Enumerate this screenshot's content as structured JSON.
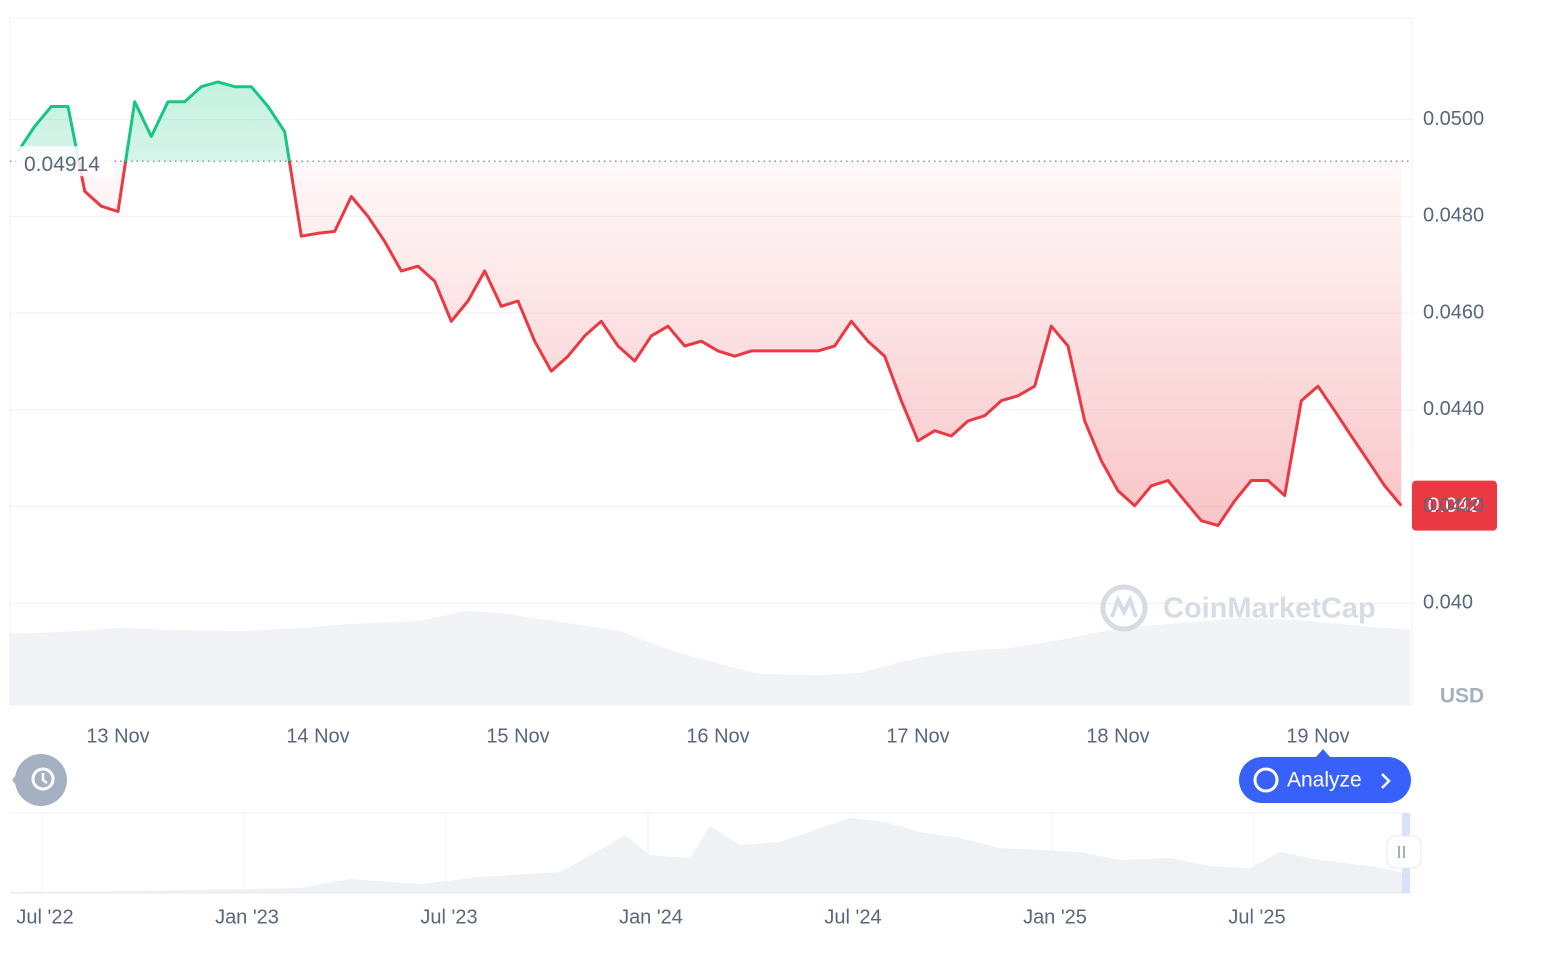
{
  "chart_data": {
    "type": "line",
    "categories": [
      null,
      null,
      null,
      null,
      null,
      null,
      "13 Nov",
      null,
      null,
      null,
      null,
      null,
      null,
      null,
      null,
      null,
      null,
      null,
      "14 Nov",
      null,
      null,
      null,
      null,
      null,
      null,
      null,
      null,
      null,
      null,
      null,
      "15 Nov",
      null,
      null,
      null,
      null,
      null,
      null,
      null,
      null,
      null,
      null,
      null,
      "16 Nov",
      null,
      null,
      null,
      null,
      null,
      null,
      null,
      null,
      null,
      null,
      null,
      "17 Nov",
      null,
      null,
      null,
      null,
      null,
      null,
      null,
      null,
      null,
      null,
      null,
      "18 Nov",
      null,
      null,
      null,
      null,
      null,
      null,
      null,
      null,
      null,
      null,
      null,
      "19 Nov",
      null,
      null,
      null,
      null,
      null
    ],
    "values": [
      0.04934,
      0.04986,
      0.05027,
      0.05027,
      0.04852,
      0.04821,
      0.0481,
      0.05037,
      0.04965,
      0.05037,
      0.05037,
      0.05068,
      0.05078,
      0.05068,
      0.05068,
      0.05027,
      0.04975,
      0.04759,
      0.04765,
      0.04769,
      0.04841,
      0.048,
      0.04748,
      0.04687,
      0.04697,
      0.04666,
      0.04583,
      0.04625,
      0.04687,
      0.04614,
      0.04625,
      0.04542,
      0.0448,
      0.04511,
      0.04553,
      0.04583,
      0.04532,
      0.04501,
      0.04553,
      0.04573,
      0.04532,
      0.04542,
      0.04522,
      0.04511,
      0.04522,
      0.04522,
      0.04522,
      0.04522,
      0.04522,
      0.04532,
      0.04583,
      0.04542,
      0.04511,
      0.04419,
      0.04336,
      0.04357,
      0.04346,
      0.04377,
      0.04388,
      0.04419,
      0.04429,
      0.04449,
      0.04573,
      0.04532,
      0.04377,
      0.04295,
      0.04233,
      0.04202,
      0.04243,
      0.04254,
      0.04212,
      0.04171,
      0.04161,
      0.04212,
      0.04254,
      0.04254,
      0.04223,
      0.04419,
      0.04449,
      0.04398,
      0.04346,
      0.04295,
      0.04243,
      0.04202
    ],
    "up_color": "#16c784",
    "down_color": "#ea3943",
    "baseline": 0.04914,
    "current_price": 0.042,
    "ylim": [
      0.0379,
      0.0521
    ],
    "yticks": [
      {
        "value": 0.04,
        "label": "0.040"
      },
      {
        "value": 0.042,
        "label": "0.0420"
      },
      {
        "value": 0.044,
        "label": "0.0440"
      },
      {
        "value": 0.046,
        "label": "0.0460"
      },
      {
        "value": 0.048,
        "label": "0.0480"
      },
      {
        "value": 0.05,
        "label": "0.0500"
      }
    ],
    "y_unit": "USD",
    "grid": true
  },
  "watermark": "CoinMarketCap",
  "analyze_button": "Analyze",
  "navigator": {
    "labels": [
      "Jul '22",
      "Jan '23",
      "Jul '23",
      "Jan '24",
      "Jul '24",
      "Jan '25",
      "Jul '25"
    ]
  }
}
